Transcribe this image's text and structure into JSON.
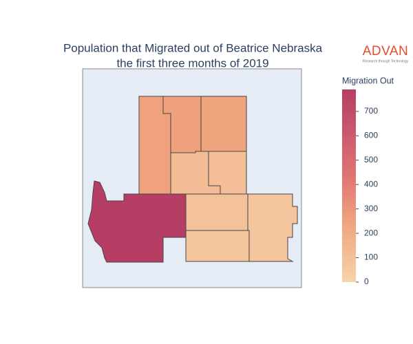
{
  "title_lines": [
    "Population that Migrated out of Beatrice Nebraska",
    "the first three months of 2019"
  ],
  "logo": {
    "name": "ADVAN",
    "tagline": "Research through Technology"
  },
  "chart_data": {
    "type": "choropleth",
    "values": [
      250,
      255,
      235,
      120,
      110,
      790,
      90,
      80,
      70
    ],
    "colorbar": {
      "title": "Migration Out",
      "zlim": [
        0,
        790
      ],
      "ticks": [
        0,
        100,
        200,
        300,
        400,
        500,
        600,
        700
      ],
      "colorscale": [
        [
          0,
          "#f6d4a9"
        ],
        [
          0.3,
          "#f1a57f"
        ],
        [
          0.55,
          "#e07474"
        ],
        [
          1,
          "#b63e65"
        ]
      ]
    }
  }
}
